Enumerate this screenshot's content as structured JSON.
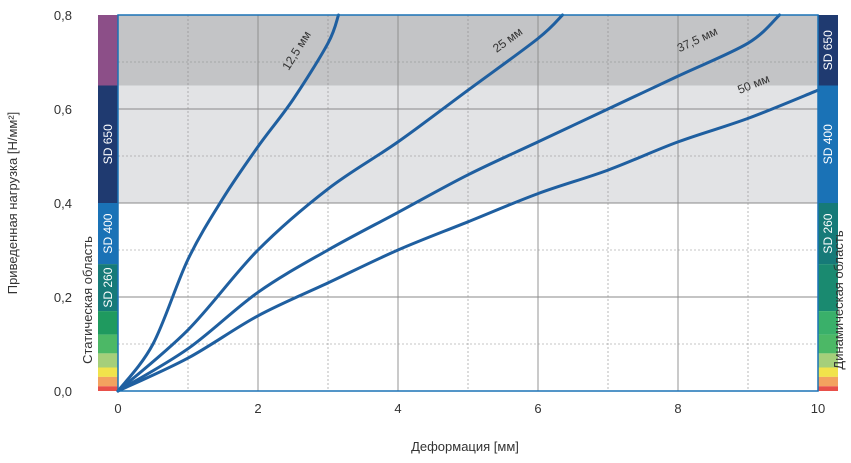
{
  "chart_data": {
    "type": "line",
    "xlabel": "Деформация [мм]",
    "ylabel": "Приведенная нагрузка [Н/мм²]",
    "xlim": [
      0,
      10
    ],
    "ylim": [
      0,
      0.8
    ],
    "x_ticks": [
      "0",
      "2",
      "4",
      "6",
      "8",
      "10"
    ],
    "y_ticks": [
      "0,0",
      "0,2",
      "0,4",
      "0,6",
      "0,8"
    ],
    "grid": true,
    "series": [
      {
        "name": "12,5 мм",
        "color": "#1f5fa0",
        "label_at": [
          2.6,
          0.72
        ],
        "points": [
          [
            0,
            0
          ],
          [
            0.5,
            0.1
          ],
          [
            1,
            0.28
          ],
          [
            1.5,
            0.41
          ],
          [
            2,
            0.52
          ],
          [
            2.5,
            0.62
          ],
          [
            3,
            0.74
          ],
          [
            3.15,
            0.8
          ]
        ]
      },
      {
        "name": "25 мм",
        "color": "#1f5fa0",
        "label_at": [
          5.6,
          0.74
        ],
        "points": [
          [
            0,
            0
          ],
          [
            1,
            0.13
          ],
          [
            2,
            0.3
          ],
          [
            3,
            0.43
          ],
          [
            4,
            0.53
          ],
          [
            5,
            0.64
          ],
          [
            6,
            0.75
          ],
          [
            6.35,
            0.8
          ]
        ]
      },
      {
        "name": "37,5 мм",
        "color": "#1f5fa0",
        "label_at": [
          8.3,
          0.74
        ],
        "points": [
          [
            0,
            0
          ],
          [
            1,
            0.09
          ],
          [
            2,
            0.21
          ],
          [
            3,
            0.3
          ],
          [
            4,
            0.38
          ],
          [
            5,
            0.46
          ],
          [
            6,
            0.53
          ],
          [
            7,
            0.6
          ],
          [
            8,
            0.67
          ],
          [
            9,
            0.74
          ],
          [
            9.45,
            0.8
          ]
        ]
      },
      {
        "name": "50 мм",
        "color": "#1f5fa0",
        "label_at": [
          9.1,
          0.645
        ],
        "points": [
          [
            0,
            0
          ],
          [
            1,
            0.07
          ],
          [
            2,
            0.16
          ],
          [
            3,
            0.23
          ],
          [
            4,
            0.3
          ],
          [
            5,
            0.36
          ],
          [
            6,
            0.42
          ],
          [
            7,
            0.47
          ],
          [
            8,
            0.53
          ],
          [
            9,
            0.58
          ],
          [
            10,
            0.64
          ]
        ]
      }
    ],
    "shaded_regions": [
      {
        "y": [
          0.65,
          0.8
        ],
        "color": "#c3c4c6"
      },
      {
        "y": [
          0.4,
          0.65
        ],
        "color": "#e2e3e5"
      }
    ],
    "left_bar": {
      "title": "Статическая область",
      "segments": [
        {
          "y": [
            0.65,
            0.8
          ],
          "color": "#8c4f88",
          "label": ""
        },
        {
          "y": [
            0.4,
            0.65
          ],
          "color": "#1f3a70",
          "label": "SD 650"
        },
        {
          "y": [
            0.27,
            0.4
          ],
          "color": "#1a72b6",
          "label": "SD 400"
        },
        {
          "y": [
            0.17,
            0.27
          ],
          "color": "#167a78",
          "label": "SD 260"
        },
        {
          "y": [
            0.12,
            0.17
          ],
          "color": "#1f9a5f",
          "label": ""
        },
        {
          "y": [
            0.08,
            0.12
          ],
          "color": "#4cb866",
          "label": ""
        },
        {
          "y": [
            0.05,
            0.08
          ],
          "color": "#a5cf7a",
          "label": ""
        },
        {
          "y": [
            0.03,
            0.05
          ],
          "color": "#f1e34b",
          "label": ""
        },
        {
          "y": [
            0.01,
            0.03
          ],
          "color": "#f3a25f",
          "label": ""
        },
        {
          "y": [
            0.0,
            0.01
          ],
          "color": "#e8504a",
          "label": ""
        }
      ]
    },
    "right_bar": {
      "title": "Динамическая область",
      "segments": [
        {
          "y": [
            0.65,
            0.8
          ],
          "color": "#1f3a70",
          "label": "SD 650"
        },
        {
          "y": [
            0.4,
            0.65
          ],
          "color": "#1a72b6",
          "label": "SD 400"
        },
        {
          "y": [
            0.27,
            0.4
          ],
          "color": "#167a78",
          "label": "SD 260"
        },
        {
          "y": [
            0.17,
            0.27
          ],
          "color": "#1a8a70",
          "label": ""
        },
        {
          "y": [
            0.12,
            0.17
          ],
          "color": "#3ab06a",
          "label": ""
        },
        {
          "y": [
            0.08,
            0.12
          ],
          "color": "#4cb866",
          "label": ""
        },
        {
          "y": [
            0.05,
            0.08
          ],
          "color": "#a5cf7a",
          "label": ""
        },
        {
          "y": [
            0.03,
            0.05
          ],
          "color": "#f1e34b",
          "label": ""
        },
        {
          "y": [
            0.01,
            0.03
          ],
          "color": "#f3a25f",
          "label": ""
        },
        {
          "y": [
            0.0,
            0.01
          ],
          "color": "#e8504a",
          "label": ""
        }
      ]
    }
  }
}
